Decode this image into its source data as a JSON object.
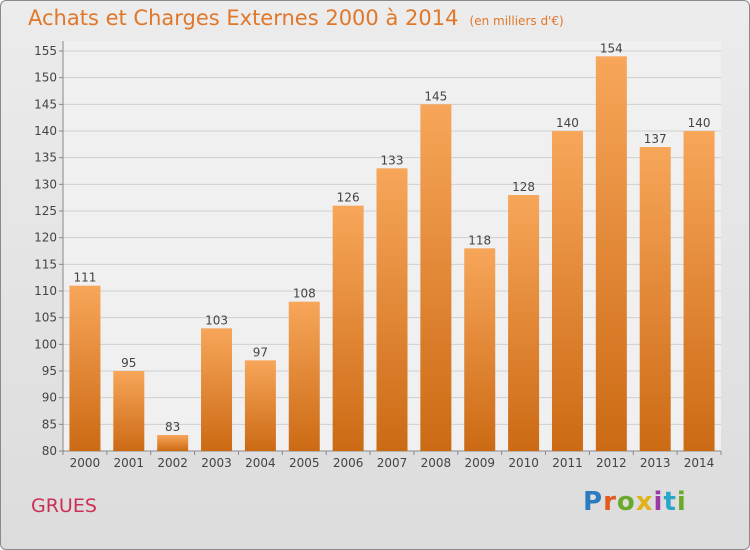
{
  "header": {
    "title": "Achats et Charges Externes 2000 à 2014",
    "unit": "(en milliers d'€)"
  },
  "footer": {
    "commune": "GRUES",
    "logo_text": "Proxiti"
  },
  "colors": {
    "bar_top": "#f7a65a",
    "bar_bottom": "#cc6a14",
    "title": "#e0772a",
    "commune": "#cc2f55"
  },
  "chart_data": {
    "type": "bar",
    "title": "Achats et Charges Externes 2000 à 2014",
    "subtitle": "(en milliers d'€)",
    "xlabel": "",
    "ylabel": "",
    "categories": [
      "2000",
      "2001",
      "2002",
      "2003",
      "2004",
      "2005",
      "2006",
      "2007",
      "2008",
      "2009",
      "2010",
      "2011",
      "2012",
      "2013",
      "2014"
    ],
    "values": [
      111,
      95,
      83,
      103,
      97,
      108,
      126,
      133,
      145,
      118,
      128,
      140,
      154,
      137,
      140
    ],
    "ylim": [
      80,
      155
    ],
    "yticks": [
      80,
      85,
      90,
      95,
      100,
      105,
      110,
      115,
      120,
      125,
      130,
      135,
      140,
      145,
      150,
      155
    ],
    "grid": true,
    "data_labels": true
  }
}
